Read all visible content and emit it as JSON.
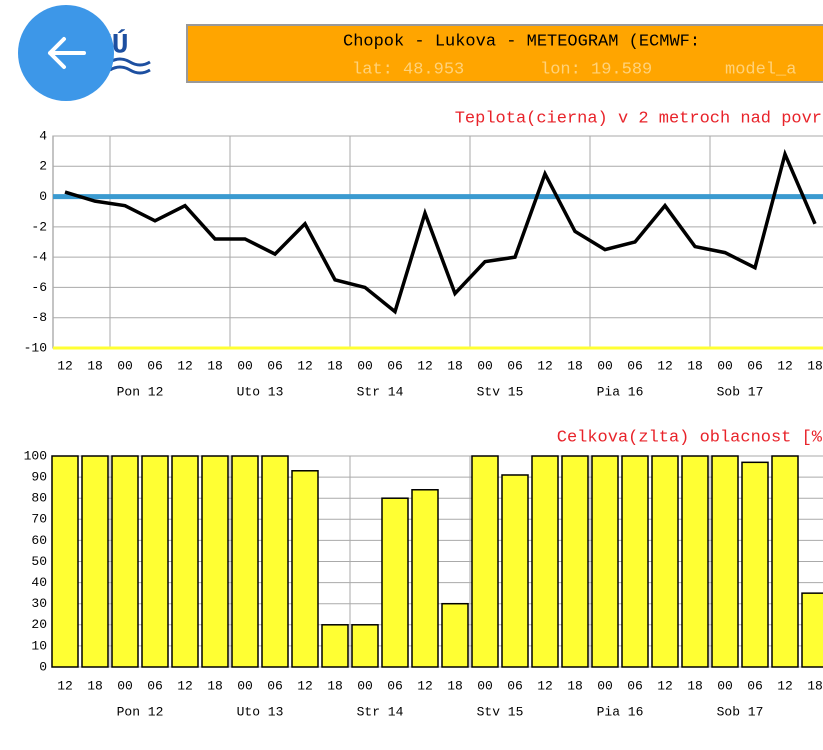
{
  "header": {
    "title": "Chopok - Lukova - METEOGRAM (ECMWF:",
    "lat": "lat: 48.953",
    "lon": "lon: 19.589",
    "model": "model_a"
  },
  "chart_data": [
    {
      "type": "line",
      "title": "Teplota(cierna) v 2 metroch nad povr",
      "color": "#000000",
      "categories": [
        "12",
        "18",
        "00",
        "06",
        "12",
        "18",
        "00",
        "06",
        "12",
        "18",
        "00",
        "06",
        "12",
        "18",
        "00",
        "06",
        "12",
        "18",
        "00",
        "06",
        "12",
        "18",
        "00",
        "06",
        "12",
        "18"
      ],
      "day_labels": [
        "Pon 12",
        "Uto 13",
        "Str 14",
        "Stv 15",
        "Pia 16",
        "Sob 17"
      ],
      "values": [
        0.3,
        -0.3,
        -0.6,
        -1.6,
        -0.6,
        -2.8,
        -2.8,
        -3.8,
        -1.8,
        -5.5,
        -6,
        -7.6,
        -1.1,
        -6.4,
        -4.3,
        -4,
        1.5,
        -2.3,
        -3.5,
        -3,
        -0.6,
        -3.3,
        -3.7,
        -4.7,
        2.8,
        -1.8
      ],
      "ylim": [
        -10,
        4
      ],
      "yticks": [
        -10,
        -8,
        -6,
        -4,
        -2,
        0,
        2,
        4
      ],
      "grid": true
    },
    {
      "type": "bar",
      "title": "Celkova(zlta) oblacnost [%",
      "color": "#ffff33",
      "categories": [
        "12",
        "18",
        "00",
        "06",
        "12",
        "18",
        "00",
        "06",
        "12",
        "18",
        "00",
        "06",
        "12",
        "18",
        "00",
        "06",
        "12",
        "18",
        "00",
        "06",
        "12",
        "18",
        "00",
        "06",
        "12",
        "18"
      ],
      "day_labels": [
        "Pon 12",
        "Uto 13",
        "Str 14",
        "Stv 15",
        "Pia 16",
        "Sob 17"
      ],
      "values": [
        100,
        100,
        100,
        100,
        100,
        100,
        100,
        100,
        93,
        20,
        20,
        80,
        84,
        30,
        100,
        91,
        100,
        100,
        100,
        100,
        100,
        100,
        100,
        97,
        100,
        35
      ],
      "ylim": [
        0,
        100
      ],
      "yticks": [
        0,
        10,
        20,
        30,
        40,
        50,
        60,
        70,
        80,
        90,
        100
      ],
      "grid": true
    }
  ]
}
